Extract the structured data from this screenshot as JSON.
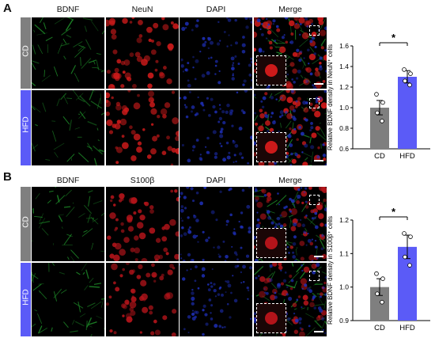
{
  "panels": [
    {
      "letter": "A",
      "columns": [
        "BDNF",
        "NeuN",
        "DAPI",
        "Merge"
      ],
      "rows": [
        "CD",
        "HFD"
      ],
      "colors": {
        "cd_bar": "#7f7f7f",
        "hfd_bar": "#5b5bf7",
        "ch1": "#1f8f2a",
        "ch2": "#cc1a1a",
        "ch3": "#1e2fb8"
      }
    },
    {
      "letter": "B",
      "columns": [
        "BDNF",
        "S100β",
        "DAPI",
        "Merge"
      ],
      "rows": [
        "CD",
        "HFD"
      ],
      "colors": {
        "cd_bar": "#7f7f7f",
        "hfd_bar": "#5b5bf7",
        "ch1": "#1f8f2a",
        "ch2": "#b3141a",
        "ch3": "#1e2fb8"
      }
    }
  ],
  "chart_data": [
    {
      "type": "bar",
      "categories": [
        "CD",
        "HFD"
      ],
      "values": [
        1.0,
        1.3
      ],
      "errors": [
        0.07,
        0.06
      ],
      "points": [
        [
          1.13,
          1.05,
          0.95,
          0.87
        ],
        [
          1.37,
          1.33,
          1.26,
          1.22
        ]
      ],
      "ylabel": "Relative BDNF density in NeuN⁺ cells",
      "ylim": [
        0.6,
        1.6
      ],
      "yticks": [
        "0.6",
        "0.8",
        "1.0",
        "1.2",
        "1.4",
        "1.6"
      ],
      "significance": "*",
      "bar_colors": [
        "#7f7f7f",
        "#5b5bf7"
      ]
    },
    {
      "type": "bar",
      "categories": [
        "CD",
        "HFD"
      ],
      "values": [
        1.0,
        1.12
      ],
      "errors": [
        0.025,
        0.035
      ],
      "points": [
        [
          1.04,
          1.025,
          0.98,
          0.955
        ],
        [
          1.16,
          1.15,
          1.09,
          1.065
        ]
      ],
      "ylabel": "Relative BDNF density in S100β⁺ cells",
      "ylim": [
        0.9,
        1.2
      ],
      "yticks": [
        "0.9",
        "1.0",
        "1.1",
        "1.2"
      ],
      "significance": "*",
      "bar_colors": [
        "#7f7f7f",
        "#5b5bf7"
      ]
    }
  ]
}
